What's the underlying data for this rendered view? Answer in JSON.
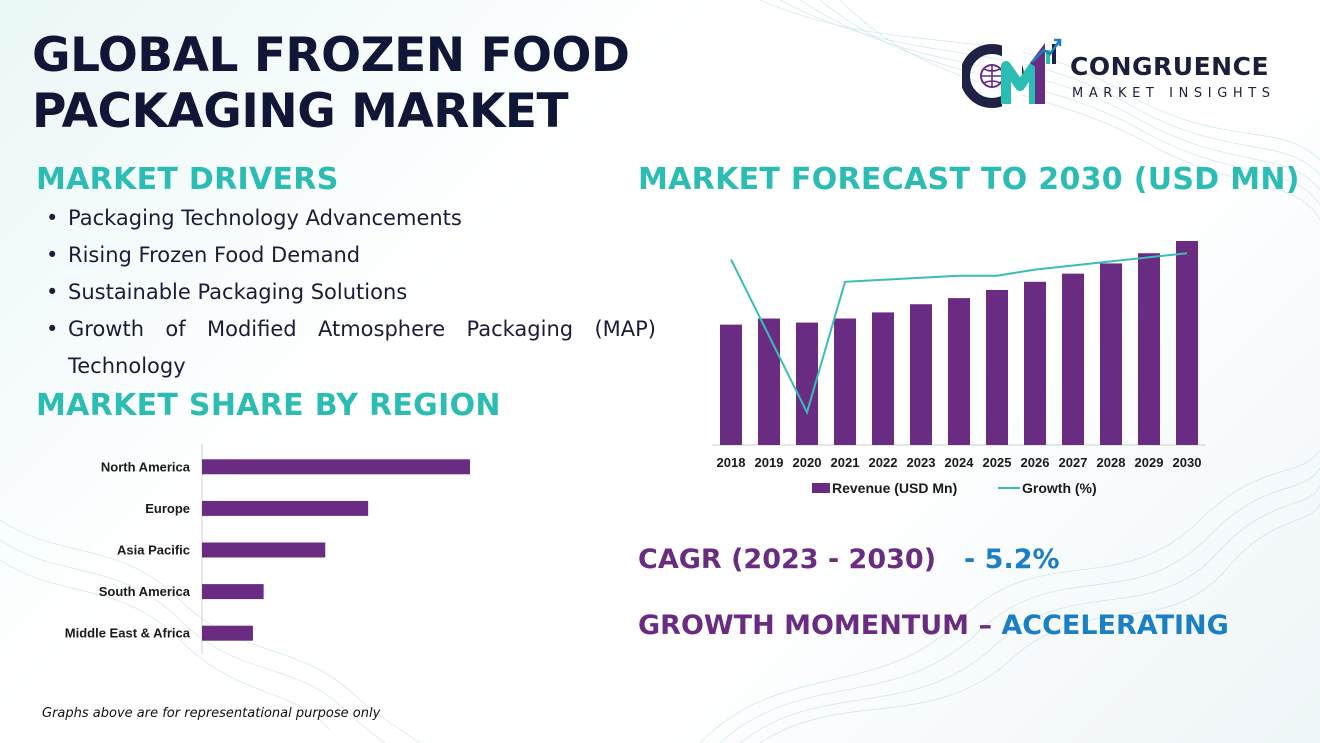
{
  "title": {
    "line1": "GLOBAL FROZEN FOOD",
    "line2": "PACKAGING MARKET"
  },
  "logo": {
    "monogram": "CM",
    "name": "CONGRUENCE",
    "tagline": "MARKET INSIGHTS"
  },
  "drivers": {
    "heading": "MARKET DRIVERS",
    "items": [
      "Packaging Technology Advancements",
      "Rising Frozen Food Demand",
      "Sustainable Packaging Solutions",
      "Growth of Modified Atmosphere Packaging (MAP) Technology"
    ]
  },
  "region_heading": "MARKET SHARE BY REGION",
  "forecast_heading": "MARKET FORECAST TO 2030 (USD MN)",
  "kpis": {
    "cagr_label": "CAGR (2023 - 2030)",
    "cagr_value": "- 5.2%",
    "momentum_label": "GROWTH MOMENTUM –",
    "momentum_value": "ACCELERATING"
  },
  "footnote": "Graphs above are for representational purpose only",
  "colors": {
    "bar": "#6a2c82",
    "line": "#3bbdb6",
    "heading_teal": "#2bbcb4",
    "kpi_purple": "#6a2c82",
    "kpi_blue": "#1a7fc4",
    "title_navy": "#0f1636"
  },
  "chart_data": [
    {
      "type": "bar",
      "orientation": "horizontal",
      "categories": [
        "North America",
        "Europe",
        "Asia Pacific",
        "South America",
        "Middle East & Africa"
      ],
      "values": [
        100,
        62,
        46,
        23,
        19
      ],
      "grid": false
    },
    {
      "type": "bar+line",
      "categories": [
        "2018",
        "2019",
        "2020",
        "2021",
        "2022",
        "2023",
        "2024",
        "2025",
        "2026",
        "2027",
        "2028",
        "2029",
        "2030"
      ],
      "series": [
        {
          "name": "Revenue (USD Mn)",
          "type": "bar",
          "values": [
            59,
            62,
            60,
            62,
            65,
            69,
            72,
            76,
            80,
            84,
            89,
            94,
            100
          ]
        },
        {
          "name": "Growth (%)",
          "type": "line",
          "values": [
            91,
            null,
            16,
            80,
            81,
            82,
            83,
            83,
            86,
            88,
            90,
            92,
            94
          ]
        }
      ],
      "legend": "bottom",
      "grid": false
    }
  ]
}
